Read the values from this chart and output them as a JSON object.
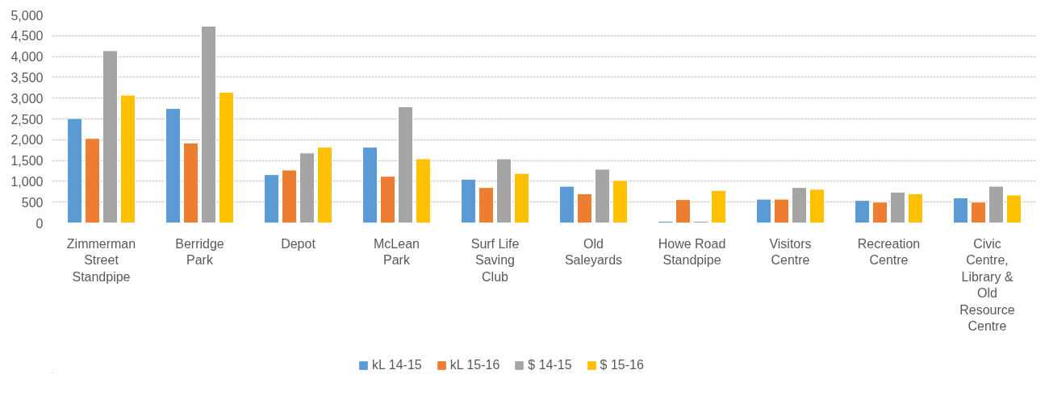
{
  "chart_data": {
    "type": "bar",
    "categories": [
      "Zimmerman Street Standpipe",
      "Berridge Park",
      "Depot",
      "McLean Park",
      "Surf Life Saving Club",
      "Old Saleyards",
      "Howe Road Standpipe",
      "Visitors Centre",
      "Recreation Centre",
      "Civic Centre, Library & Old Resource Centre"
    ],
    "series": [
      {
        "name": "kL 14-15",
        "color": "#5b9bd5",
        "values": [
          2510,
          2750,
          1160,
          1820,
          1050,
          880,
          40,
          570,
          540,
          600
        ]
      },
      {
        "name": "kL 15-16",
        "color": "#ed7d31",
        "values": [
          2030,
          1920,
          1270,
          1120,
          850,
          700,
          560,
          570,
          500,
          500
        ]
      },
      {
        "name": "$ 14-15",
        "color": "#a5a5a5",
        "values": [
          4140,
          4730,
          1680,
          2790,
          1540,
          1290,
          40,
          850,
          740,
          880
        ]
      },
      {
        "name": "$ 15-16",
        "color": "#ffc000",
        "values": [
          3070,
          3140,
          1820,
          1540,
          1190,
          1020,
          780,
          810,
          700,
          670
        ]
      }
    ],
    "ylim": [
      0,
      5000
    ],
    "yticks": [
      {
        "value": 0,
        "label": "0"
      },
      {
        "value": 500,
        "label": "500"
      },
      {
        "value": 1000,
        "label": "1,000"
      },
      {
        "value": 1500,
        "label": "1,500"
      },
      {
        "value": 2000,
        "label": "2,000"
      },
      {
        "value": 2500,
        "label": "2,500"
      },
      {
        "value": 3000,
        "label": "3,000"
      },
      {
        "value": 3500,
        "label": "3,500"
      },
      {
        "value": 4000,
        "label": "4,000"
      },
      {
        "value": 4500,
        "label": "4,500"
      },
      {
        "value": 5000,
        "label": "5,000"
      }
    ],
    "grid": "y",
    "legend": "bottom"
  }
}
